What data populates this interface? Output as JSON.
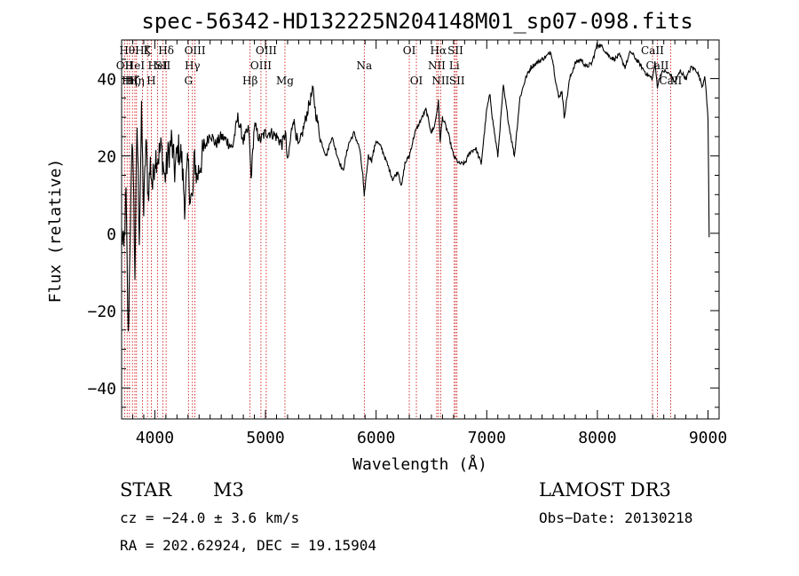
{
  "chart_data": {
    "type": "line",
    "title": "spec-56342-HD132225N204148M01_sp07-098.fits",
    "xlabel": "Wavelength (Å)",
    "ylabel": "Flux (relative)",
    "xlim": [
      3700,
      9100
    ],
    "ylim": [
      -48,
      50
    ],
    "xticks": [
      {
        "value": 4000,
        "label": "4000"
      },
      {
        "value": 5000,
        "label": "5000"
      },
      {
        "value": 6000,
        "label": "6000"
      },
      {
        "value": 7000,
        "label": "7000"
      },
      {
        "value": 8000,
        "label": "8000"
      },
      {
        "value": 9000,
        "label": "9000"
      }
    ],
    "yticks": [
      {
        "value": -40,
        "label": "−40"
      },
      {
        "value": -20,
        "label": "−20"
      },
      {
        "value": 0,
        "label": "0"
      },
      {
        "value": 20,
        "label": "20"
      },
      {
        "value": 40,
        "label": "40"
      }
    ],
    "spectrum": {
      "name": "flux",
      "x": [
        3700,
        3720,
        3740,
        3760,
        3780,
        3800,
        3820,
        3840,
        3860,
        3880,
        3900,
        3920,
        3940,
        3960,
        3980,
        4000,
        4030,
        4060,
        4090,
        4120,
        4150,
        4180,
        4210,
        4240,
        4270,
        4300,
        4320,
        4340,
        4360,
        4380,
        4410,
        4450,
        4500,
        4550,
        4600,
        4650,
        4700,
        4750,
        4800,
        4850,
        4870,
        4900,
        4950,
        5000,
        5050,
        5100,
        5150,
        5180,
        5200,
        5250,
        5300,
        5350,
        5400,
        5430,
        5450,
        5500,
        5550,
        5600,
        5650,
        5700,
        5750,
        5800,
        5850,
        5880,
        5893,
        5900,
        5930,
        5960,
        6000,
        6050,
        6100,
        6150,
        6200,
        6230,
        6260,
        6300,
        6350,
        6400,
        6450,
        6500,
        6530,
        6563,
        6580,
        6600,
        6650,
        6700,
        6750,
        6800,
        6850,
        6900,
        6950,
        7000,
        7030,
        7050,
        7080,
        7100,
        7150,
        7200,
        7250,
        7300,
        7350,
        7400,
        7450,
        7500,
        7550,
        7580,
        7600,
        7620,
        7650,
        7680,
        7700,
        7750,
        7800,
        7850,
        7900,
        7950,
        8000,
        8050,
        8100,
        8150,
        8200,
        8250,
        8300,
        8350,
        8400,
        8450,
        8498,
        8520,
        8542,
        8570,
        8600,
        8662,
        8700,
        8750,
        8800,
        8850,
        8900,
        8950,
        8970,
        9000,
        9010
      ],
      "values": [
        0,
        -5,
        10,
        -28,
        5,
        25,
        -10,
        28,
        0,
        30,
        5,
        24,
        10,
        18,
        12,
        20,
        20,
        22,
        14,
        20,
        24,
        16,
        22,
        20,
        8,
        18,
        10,
        8,
        20,
        14,
        18,
        22,
        26,
        23,
        25,
        24,
        22,
        30,
        24,
        27,
        14,
        28,
        24,
        26,
        26,
        25,
        23,
        26,
        18,
        30,
        22,
        28,
        34,
        37,
        32,
        24,
        20,
        25,
        20,
        16,
        23,
        26,
        22,
        15,
        9,
        12,
        20,
        19,
        24,
        22,
        18,
        14,
        16,
        12,
        18,
        20,
        26,
        29,
        32,
        26,
        28,
        34,
        24,
        30,
        26,
        20,
        18,
        18,
        21,
        22,
        18,
        32,
        36,
        30,
        24,
        20,
        38,
        28,
        20,
        35,
        40,
        43,
        44,
        45,
        46,
        47,
        44,
        40,
        35,
        37,
        30,
        40,
        44,
        45,
        43,
        44,
        49,
        48,
        46,
        45,
        46,
        43,
        47,
        45,
        43,
        41,
        40,
        44,
        38,
        41,
        42,
        41,
        39,
        42,
        40,
        43,
        42,
        38,
        41,
        30,
        -1
      ]
    },
    "spectral_lines": [
      {
        "wavelength": 3727,
        "name": "OII",
        "row": 2
      },
      {
        "wavelength": 3750,
        "name": "Hθ",
        "row": 1
      },
      {
        "wavelength": 3771,
        "name": "Hη",
        "row": 3
      },
      {
        "wavelength": 3798,
        "name": "Hζ",
        "row": 3
      },
      {
        "wavelength": 3820,
        "name": "HeI",
        "row": 2
      },
      {
        "wavelength": 3835,
        "name": "Hη",
        "row": 3
      },
      {
        "wavelength": 3889,
        "name": "Hζ",
        "row": 1
      },
      {
        "wavelength": 3934,
        "name": "K",
        "row": 1
      },
      {
        "wavelength": 3968,
        "name": "H",
        "row": 3
      },
      {
        "wavelength": 4026,
        "name": "HeI",
        "row": 2
      },
      {
        "wavelength": 4072,
        "name": "SII",
        "row": 2
      },
      {
        "wavelength": 4102,
        "name": "Hδ",
        "row": 1
      },
      {
        "wavelength": 4304,
        "name": "G",
        "row": 3
      },
      {
        "wavelength": 4340,
        "name": "Hγ",
        "row": 2
      },
      {
        "wavelength": 4363,
        "name": "OIII",
        "row": 1
      },
      {
        "wavelength": 4861,
        "name": "Hβ",
        "row": 3
      },
      {
        "wavelength": 4959,
        "name": "OIII",
        "row": 2
      },
      {
        "wavelength": 5007,
        "name": "OIII",
        "row": 1
      },
      {
        "wavelength": 5176,
        "name": "Mg",
        "row": 3
      },
      {
        "wavelength": 5893,
        "name": "Na",
        "row": 2
      },
      {
        "wavelength": 6300,
        "name": "OI",
        "row": 1
      },
      {
        "wavelength": 6364,
        "name": "OI",
        "row": 3
      },
      {
        "wavelength": 6548,
        "name": "NII",
        "row": 2
      },
      {
        "wavelength": 6563,
        "name": "Hα",
        "row": 1
      },
      {
        "wavelength": 6583,
        "name": "NII",
        "row": 3
      },
      {
        "wavelength": 6707,
        "name": "Li",
        "row": 2
      },
      {
        "wavelength": 6717,
        "name": "SII",
        "row": 1
      },
      {
        "wavelength": 6731,
        "name": "SII",
        "row": 3
      },
      {
        "wavelength": 8498,
        "name": "CaII",
        "row": 1
      },
      {
        "wavelength": 8542,
        "name": "CaII",
        "row": 2
      },
      {
        "wavelength": 8662,
        "name": "CaII",
        "row": 3
      }
    ],
    "annotations": {
      "object_class": "STAR",
      "subclass": "M3",
      "survey": "LAMOST DR3",
      "redshift": "cz = −24.0 ± 3.6 km/s",
      "obs_date": "Obs−Date: 20130218",
      "coordinates": "RA = 202.62924, DEC =  19.15904"
    },
    "colors": {
      "spectrum": "#000000",
      "axis": "#000000",
      "line_marker": "#cc0000"
    }
  }
}
